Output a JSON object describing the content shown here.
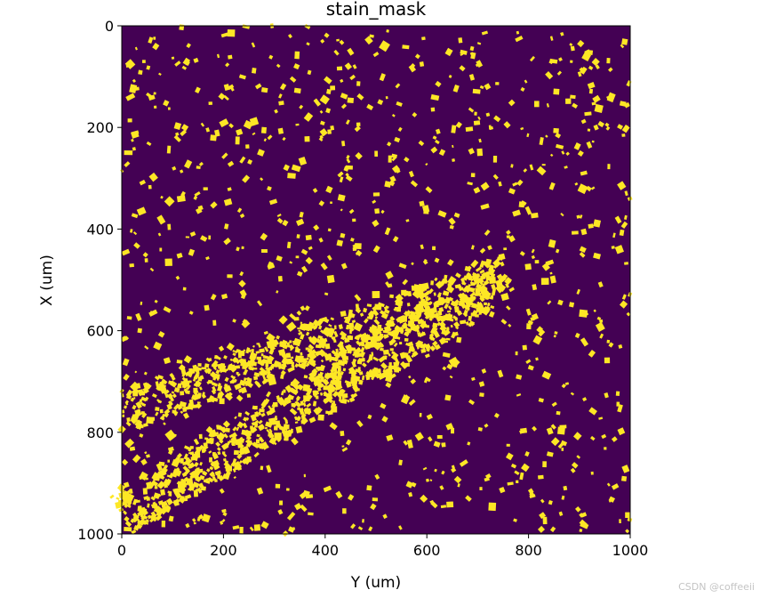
{
  "chart_data": {
    "type": "heatmap",
    "title": "stain_mask",
    "xlabel": "Y (um)",
    "ylabel": "X (um)",
    "xlim": [
      0,
      1000
    ],
    "ylim": [
      0,
      1000
    ],
    "y_inverted": true,
    "x_ticks": [
      0,
      200,
      400,
      600,
      800,
      1000
    ],
    "y_ticks": [
      0,
      200,
      400,
      600,
      800,
      1000
    ],
    "value_range": [
      0,
      1
    ],
    "colormap": "viridis",
    "colors": {
      "low": "#440154",
      "high": "#fde725",
      "axis": "#000000"
    },
    "grid": false,
    "legend": "none",
    "regions": [
      {
        "kind": "dense_band",
        "from": [
          0,
          760
        ],
        "to": [
          760,
          490
        ],
        "half_width": 40,
        "density": 0.6
      },
      {
        "kind": "dense_band",
        "from": [
          0,
          960
        ],
        "to": [
          720,
          520
        ],
        "half_width": 45,
        "density": 0.6
      },
      {
        "kind": "scattered_blobs",
        "extent": "whole_image",
        "density": 0.08
      }
    ]
  },
  "watermark": "CSDN @coffeeii"
}
